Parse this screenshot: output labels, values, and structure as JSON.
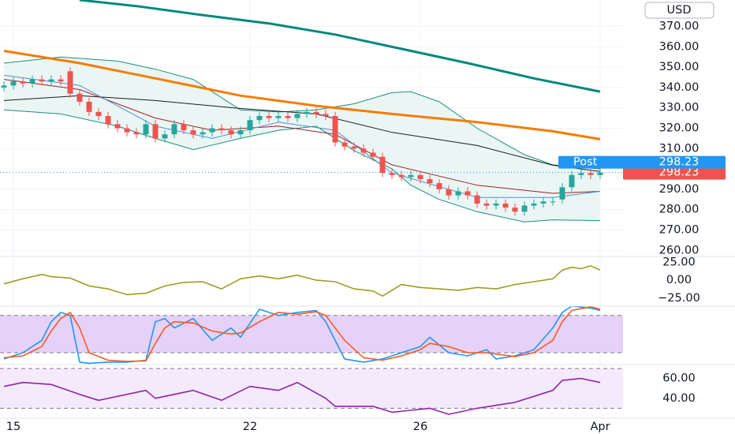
{
  "chart_data": [
    {
      "type": "candlestick",
      "currency": "USD",
      "categories": [
        null,
        "15",
        null,
        null,
        null,
        null,
        null,
        null,
        null,
        null,
        null,
        null,
        null,
        null,
        null,
        null,
        null,
        null,
        null,
        null,
        null,
        null,
        null,
        null,
        null,
        null,
        "22",
        null,
        null,
        null,
        null,
        null,
        null,
        null,
        null,
        null,
        null,
        null,
        null,
        null,
        null,
        null,
        null,
        null,
        "26",
        null,
        null,
        null,
        null,
        null,
        null,
        null,
        null,
        null,
        null,
        null,
        null,
        null,
        null,
        null,
        null,
        null,
        null,
        "Apr"
      ],
      "open": [
        340,
        341,
        343,
        342,
        344,
        343,
        344,
        348,
        337,
        333,
        328,
        326,
        322,
        320,
        318,
        317,
        322,
        315,
        317,
        322,
        319,
        317,
        318,
        320,
        319,
        317,
        319,
        324,
        326,
        325,
        326,
        325,
        327,
        328,
        327,
        326,
        313,
        311,
        310,
        308,
        306,
        298,
        297,
        296,
        297,
        295,
        293,
        290,
        287,
        289,
        287,
        283,
        282,
        283,
        281,
        279,
        282,
        283,
        284,
        285,
        291,
        297,
        298,
        297
      ],
      "high": [
        343,
        345,
        345,
        346,
        346,
        346,
        346,
        350,
        339,
        335,
        330,
        328,
        324,
        322,
        320,
        324,
        324,
        319,
        324,
        324,
        321,
        320,
        322,
        322,
        321,
        321,
        326,
        328,
        328,
        328,
        328,
        329,
        330,
        330,
        329,
        328,
        315,
        313,
        312,
        310,
        308,
        300,
        299,
        299,
        299,
        297,
        295,
        292,
        291,
        291,
        289,
        285,
        285,
        285,
        283,
        284,
        285,
        286,
        286,
        293,
        299,
        300,
        300,
        300
      ],
      "low": [
        338,
        339,
        340,
        340,
        341,
        341,
        341,
        335,
        331,
        326,
        324,
        320,
        318,
        316,
        315,
        315,
        313,
        313,
        315,
        317,
        315,
        315,
        316,
        317,
        315,
        315,
        317,
        322,
        323,
        323,
        323,
        323,
        325,
        325,
        324,
        311,
        309,
        308,
        306,
        304,
        296,
        295,
        294,
        294,
        293,
        291,
        288,
        285,
        285,
        285,
        281,
        280,
        280,
        279,
        277,
        277,
        280,
        281,
        282,
        283,
        289,
        295,
        295,
        295
      ],
      "close": [
        341,
        343,
        342,
        344,
        343,
        344,
        343,
        337,
        333,
        328,
        326,
        322,
        320,
        318,
        317,
        322,
        315,
        317,
        322,
        319,
        317,
        318,
        320,
        319,
        317,
        319,
        324,
        326,
        325,
        326,
        325,
        327,
        328,
        327,
        326,
        313,
        311,
        310,
        308,
        306,
        298,
        297,
        296,
        297,
        295,
        293,
        290,
        287,
        289,
        287,
        283,
        282,
        283,
        281,
        279,
        282,
        283,
        284,
        284,
        291,
        297,
        298,
        297,
        298.23
      ],
      "up_color": "#26a69a",
      "down_color": "#ef5350",
      "overlays": [
        {
          "color": "#00897b",
          "width": 3,
          "x": [
            8,
            14,
            21,
            28,
            35,
            42,
            49,
            56,
            63
          ],
          "values": [
            383,
            380,
            375.6,
            371.5,
            366,
            359,
            352,
            344.5,
            338
          ]
        },
        {
          "color": "#f57c00",
          "width": 3,
          "x": [
            0,
            8,
            16,
            25,
            33,
            41,
            50,
            58,
            63
          ],
          "values": [
            358,
            352,
            344.5,
            336,
            331,
            327,
            323,
            318.5,
            314.6
          ]
        },
        {
          "color": "#1c1c1c",
          "width": 1,
          "x": [
            0,
            8,
            16,
            25,
            33,
            41,
            50,
            58,
            63
          ],
          "values": [
            333.6,
            336,
            333.6,
            329.7,
            327,
            318,
            311.5,
            301.8,
            298.7
          ]
        },
        {
          "color": "#9b2226",
          "width": 1,
          "x": [
            0,
            8,
            16,
            22,
            29,
            35,
            41,
            50,
            58,
            63
          ],
          "values": [
            344,
            339,
            325,
            319,
            321,
            317,
            302,
            292,
            288,
            289
          ]
        },
        {
          "color": "#4f8fd6",
          "width": 1,
          "x": [
            0,
            8,
            16,
            22,
            29,
            35,
            41,
            50,
            58,
            63
          ],
          "values": [
            346,
            341,
            321,
            315,
            323,
            319,
            298,
            286,
            286,
            289
          ]
        }
      ],
      "bollinger": {
        "color": "#1e8e7e",
        "fill": "#eaf6f4",
        "x": [
          0,
          6,
          12,
          16,
          20,
          25,
          29,
          33,
          37,
          41,
          43,
          46,
          50,
          55,
          58,
          63
        ],
        "upper": [
          352,
          355,
          353,
          349,
          344,
          329,
          328,
          329,
          332,
          337.5,
          338,
          333,
          320,
          307,
          302,
          300
        ],
        "lower": [
          329,
          327,
          321,
          315,
          309.5,
          315,
          319,
          321,
          309,
          300,
          292,
          285,
          279,
          274,
          275,
          274.6
        ]
      },
      "last_price": 298.23,
      "post_label": "Post",
      "post_price": 298.23,
      "post_color": "#2196f3",
      "ylim": [
        257,
        383
      ],
      "yticks": [
        {
          "value": 260,
          "label": "260.00"
        },
        {
          "value": 270,
          "label": "270.00"
        },
        {
          "value": 280,
          "label": "280.00"
        },
        {
          "value": 290,
          "label": "290.00"
        },
        {
          "value": 300,
          "label": "300.00"
        },
        {
          "value": 310,
          "label": "310.00"
        },
        {
          "value": 320,
          "label": "320.00"
        },
        {
          "value": 330,
          "label": "330.00"
        },
        {
          "value": 340,
          "label": "340.00"
        },
        {
          "value": 350,
          "label": "350.00"
        },
        {
          "value": 360,
          "label": "360.00"
        },
        {
          "value": 370,
          "label": "370.00"
        }
      ],
      "grid": true
    },
    {
      "type": "line",
      "ylim": [
        -36,
        33
      ],
      "yticks": [
        {
          "value": -25,
          "label": "−25.00"
        },
        {
          "value": 0,
          "label": "0.00"
        },
        {
          "value": 25,
          "label": "25.00"
        }
      ],
      "series": [
        {
          "color": "#9e9d24",
          "x": [
            0,
            2,
            4,
            5,
            7,
            9,
            11,
            13,
            15,
            17,
            19,
            21,
            23,
            25,
            27,
            29,
            31,
            33,
            35,
            37,
            39,
            40,
            42,
            44,
            46,
            48,
            50,
            52,
            54,
            56,
            58,
            59,
            60,
            61,
            62,
            63
          ],
          "values": [
            -5,
            2,
            8,
            5,
            3,
            -8,
            -12,
            -20,
            -18,
            -8,
            -3,
            -2,
            -12,
            2,
            6,
            2,
            7,
            0,
            -2,
            -12,
            -15,
            -22,
            -6,
            -10,
            -12,
            -14,
            -10,
            -12,
            -6,
            -2,
            2,
            14,
            18,
            16,
            20,
            14
          ]
        }
      ]
    },
    {
      "type": "line",
      "ylim": [
        1,
        95
      ],
      "bands": [
        20,
        80
      ],
      "band_fill": "#e6d2f8",
      "series": [
        {
          "color": "#2196f3",
          "x": [
            0,
            2,
            4,
            5,
            6,
            7,
            8,
            9,
            11,
            13,
            15,
            16,
            17,
            18,
            20,
            22,
            24,
            25,
            27,
            29,
            31,
            33,
            34,
            36,
            38,
            40,
            42,
            44,
            45,
            47,
            49,
            51,
            52,
            54,
            56,
            58,
            59,
            60,
            62,
            63
          ],
          "values": [
            10,
            20,
            40,
            70,
            85,
            80,
            5,
            3,
            5,
            5,
            8,
            70,
            75,
            60,
            75,
            40,
            60,
            45,
            90,
            80,
            85,
            88,
            70,
            10,
            5,
            10,
            20,
            30,
            45,
            20,
            15,
            25,
            10,
            15,
            25,
            60,
            85,
            95,
            92,
            88
          ]
        },
        {
          "color": "#ff5722",
          "x": [
            0,
            2,
            4,
            5,
            6,
            7,
            8,
            9,
            11,
            13,
            15,
            16,
            17,
            18,
            20,
            22,
            24,
            25,
            27,
            29,
            31,
            33,
            34,
            36,
            38,
            40,
            42,
            44,
            45,
            47,
            49,
            51,
            52,
            54,
            56,
            58,
            59,
            60,
            62,
            63
          ],
          "values": [
            12,
            15,
            30,
            55,
            75,
            85,
            60,
            20,
            8,
            6,
            7,
            35,
            60,
            70,
            68,
            55,
            50,
            52,
            70,
            85,
            82,
            86,
            80,
            40,
            12,
            8,
            15,
            25,
            35,
            30,
            20,
            20,
            18,
            14,
            20,
            40,
            70,
            88,
            94,
            90
          ]
        }
      ]
    },
    {
      "type": "line",
      "ylim": [
        20,
        74
      ],
      "bands": [
        30,
        70
      ],
      "band_fill": "#f5eafc",
      "yticks": [
        {
          "value": 40,
          "label": "40.00"
        },
        {
          "value": 60,
          "label": "60.00"
        }
      ],
      "series": [
        {
          "color": "#8e24aa",
          "x": [
            0,
            2,
            5,
            8,
            10,
            15,
            16,
            20,
            23,
            26,
            29,
            31,
            34,
            35,
            39,
            41,
            45,
            47,
            50,
            54,
            58,
            59,
            61,
            63
          ],
          "values": [
            52,
            56,
            54,
            44,
            38,
            48,
            40,
            48,
            38,
            52,
            48,
            56,
            40,
            32,
            32,
            26,
            30,
            24,
            30,
            36,
            48,
            58,
            60,
            56
          ]
        }
      ]
    }
  ]
}
